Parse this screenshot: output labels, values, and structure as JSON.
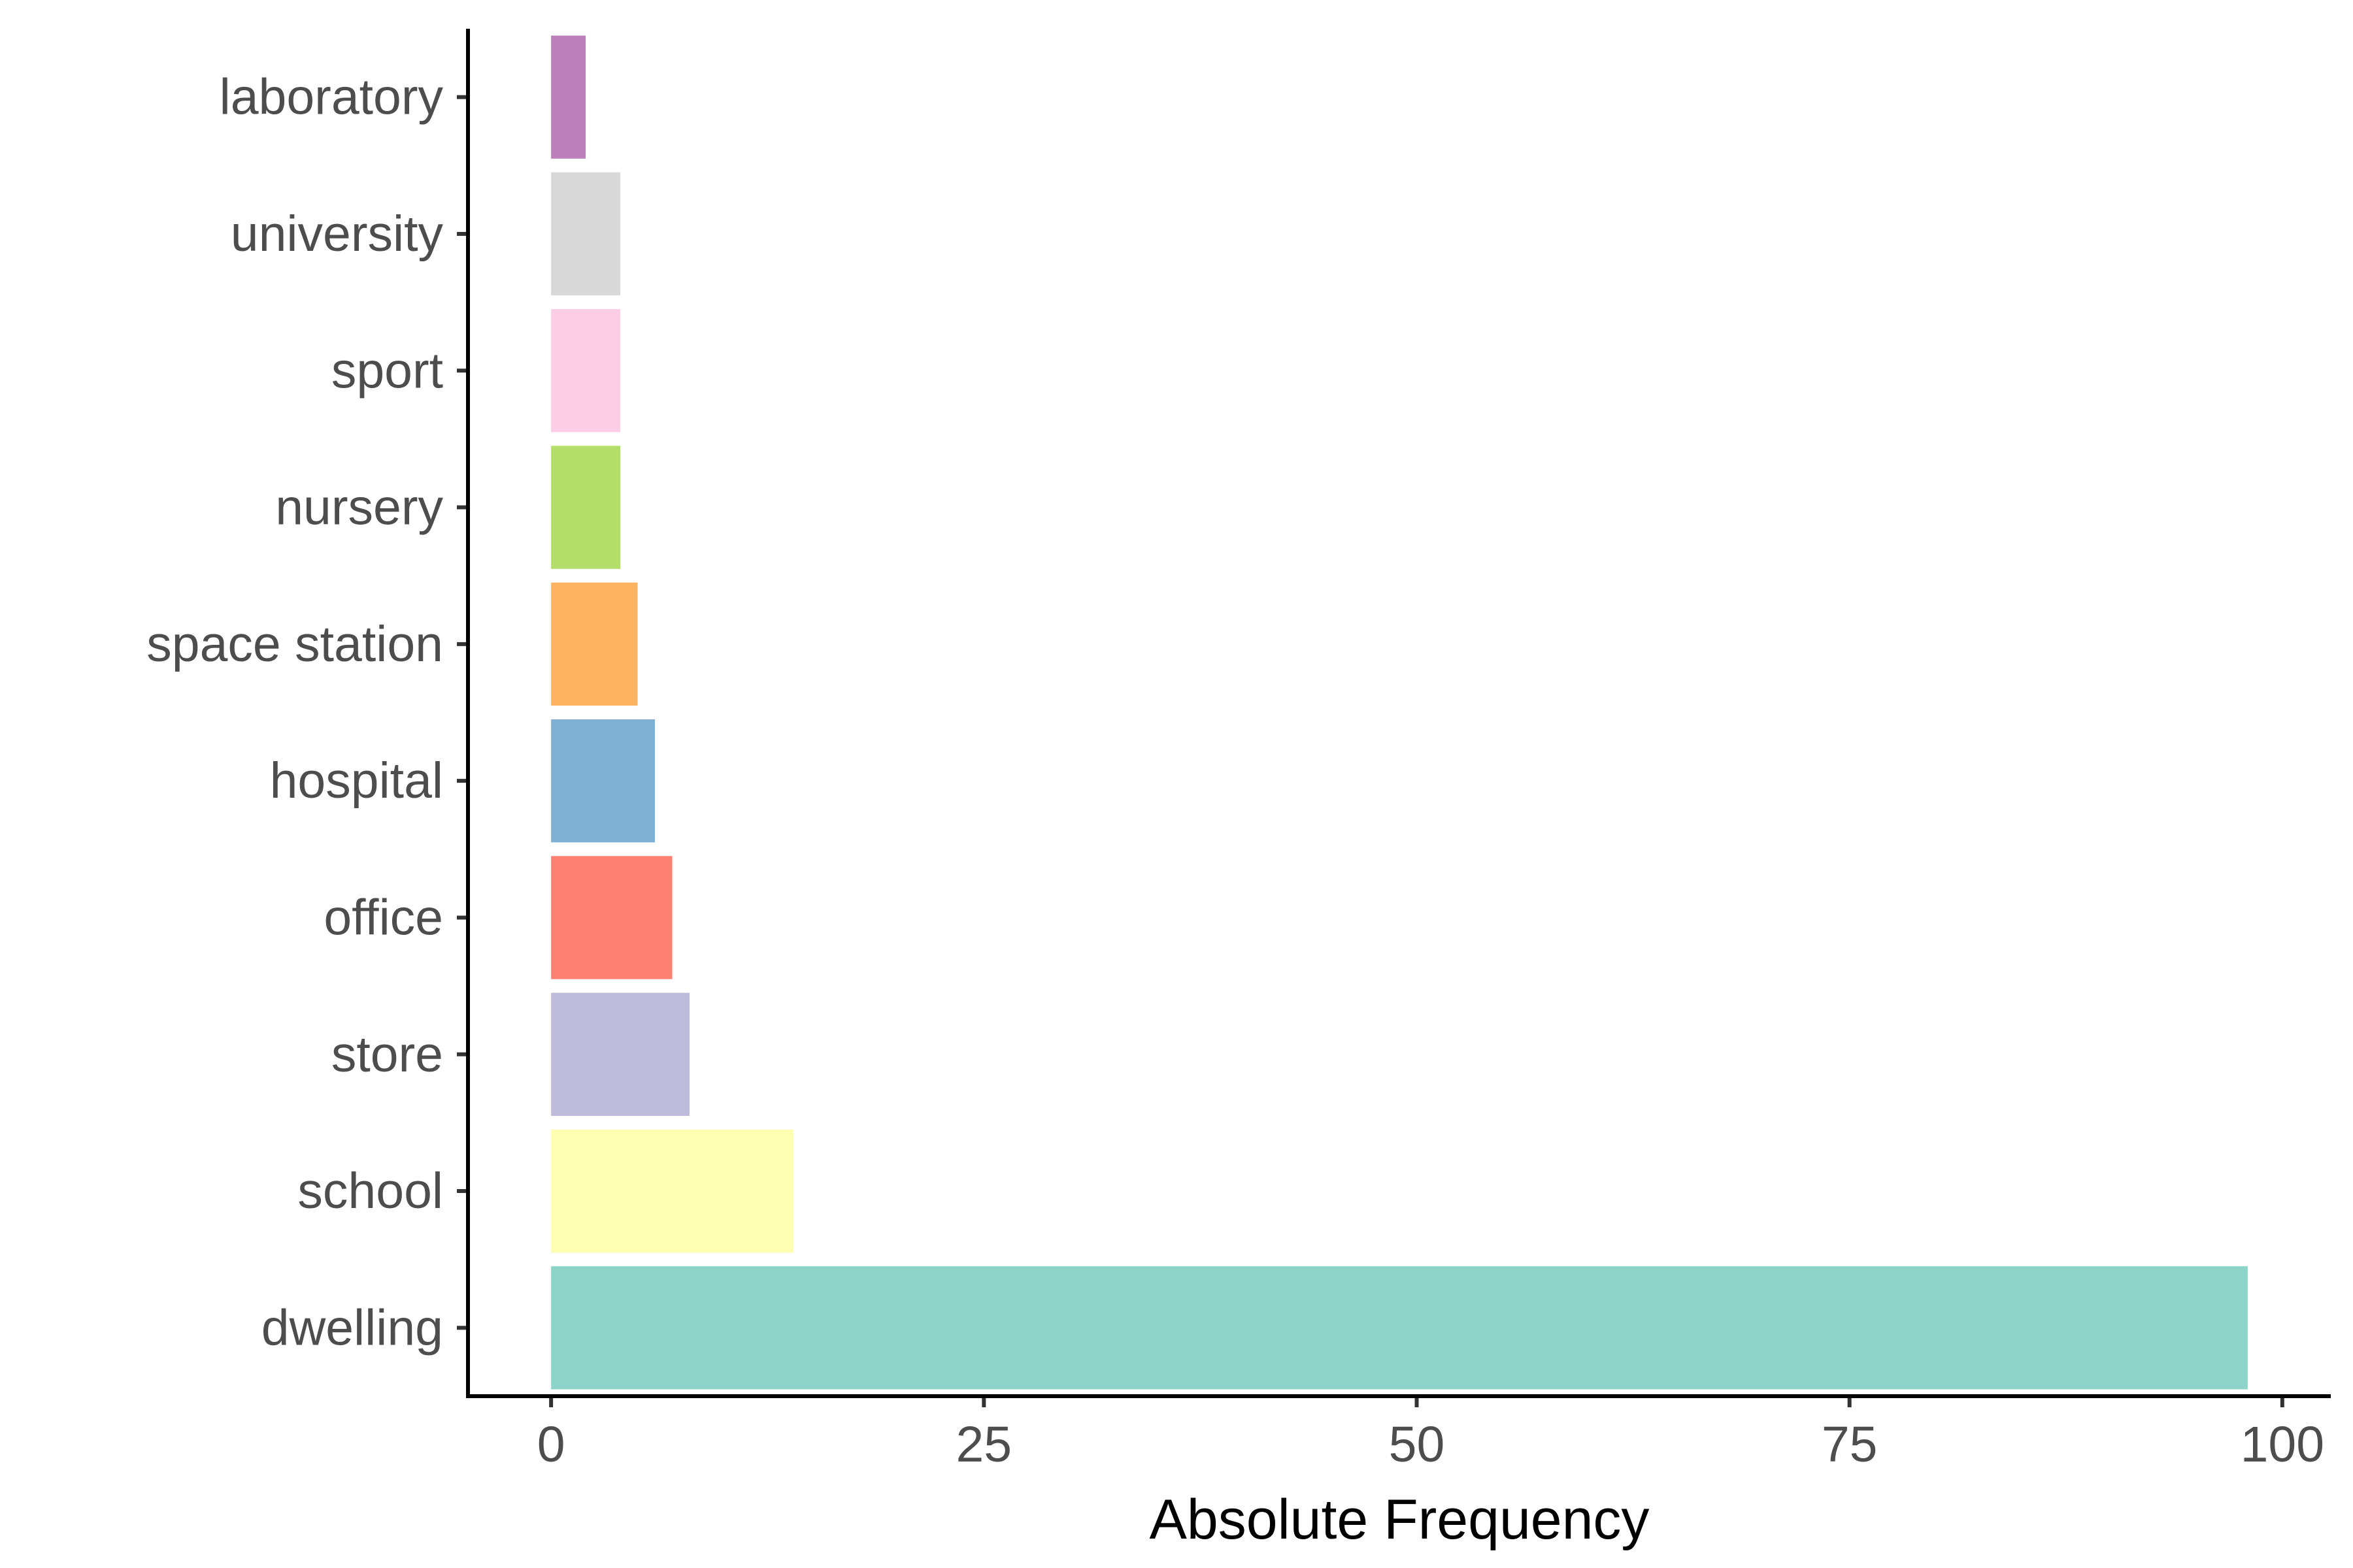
{
  "chart_data": {
    "type": "bar",
    "orientation": "horizontal",
    "categories": [
      "dwelling",
      "school",
      "store",
      "office",
      "hospital",
      "space station",
      "nursery",
      "sport",
      "university",
      "laboratory"
    ],
    "values": [
      98,
      14,
      8,
      7,
      6,
      5,
      4,
      4,
      4,
      2
    ],
    "colors": [
      "#8DD3C7",
      "#FFFFB3",
      "#BEBADA",
      "#FB8072",
      "#80B1D3",
      "#FDB462",
      "#B3DE69",
      "#FCCDE5",
      "#D9D9D9",
      "#BC80BD"
    ],
    "xlabel": "Absolute Frequency",
    "ylabel": "",
    "title": "",
    "xlim": [
      -4.8,
      102.8
    ],
    "xticks": [
      0,
      25,
      50,
      75,
      100
    ],
    "xtick_labels": [
      "0",
      "25",
      "50",
      "75",
      "100"
    ],
    "grid": false,
    "legend": "none"
  }
}
